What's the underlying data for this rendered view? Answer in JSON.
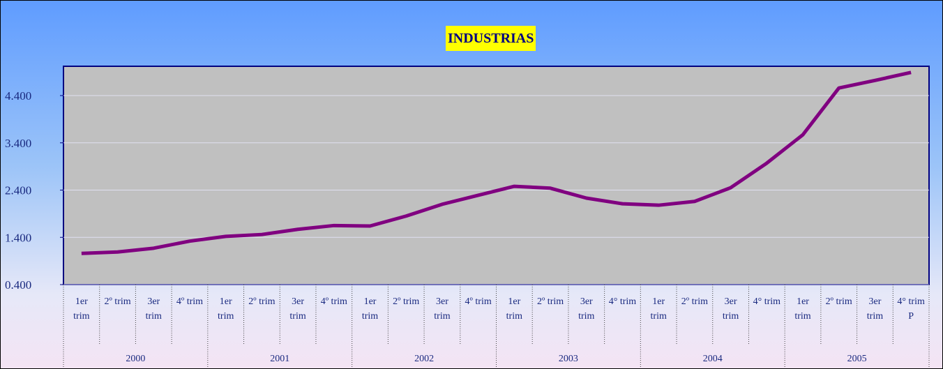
{
  "chart_data": {
    "type": "line",
    "title": "INDUSTRIAS",
    "categories": [
      "1er trim",
      "2º trim",
      "3er trim",
      "4º trim",
      "1er trim",
      "2º trim",
      "3er trim",
      "4º trim",
      "1er trim",
      "2º trim",
      "3er trim",
      "4º trim",
      "1er trim",
      "2º trim",
      "3er trim",
      "4° trim",
      "1er trim",
      "2º trim",
      "3er trim",
      "4° trim",
      "1er trim",
      "2º trim",
      "3er trim",
      "4° trim P"
    ],
    "groups": [
      "2000",
      "2001",
      "2002",
      "2003",
      "2004",
      "2005"
    ],
    "series": [
      {
        "name": "INDUSTRIAS",
        "color": "#800080",
        "values": [
          1060,
          1090,
          1170,
          1320,
          1420,
          1460,
          1570,
          1650,
          1640,
          1850,
          2100,
          2290,
          2480,
          2440,
          2230,
          2110,
          2080,
          2160,
          2450,
          2970,
          3570,
          4560,
          4720,
          4890
        ]
      }
    ],
    "ylim": [
      400,
      5020
    ],
    "yticks": [
      {
        "value": 400,
        "label": "0.400"
      },
      {
        "value": 1400,
        "label": "1.400"
      },
      {
        "value": 2400,
        "label": "2.400"
      },
      {
        "value": 3400,
        "label": "3.400"
      },
      {
        "value": 4400,
        "label": "4.400"
      }
    ],
    "grid": true
  }
}
